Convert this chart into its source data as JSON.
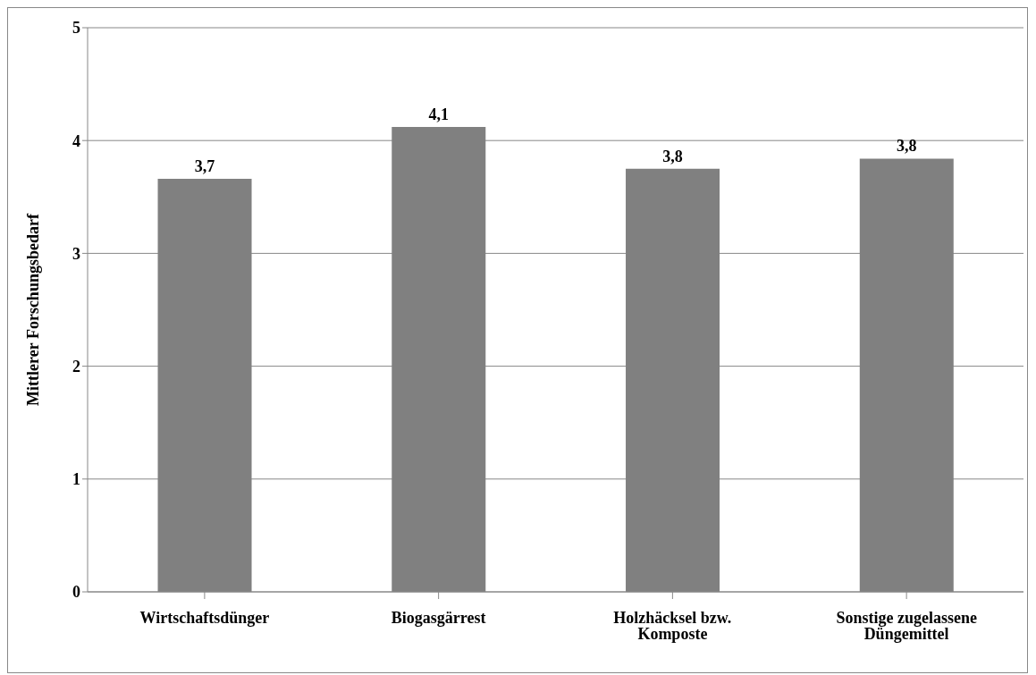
{
  "chart_data": {
    "type": "bar",
    "ylabel": "Mittlerer Forschungsbedarf",
    "categories": [
      "Wirtschaftsdünger",
      "Biogasgärrest",
      "Holzhäcksel bzw. Komposte",
      "Sonstige zugelassene Düngemittel"
    ],
    "values": [
      3.66,
      4.12,
      3.75,
      3.84
    ],
    "value_labels": [
      "3,7",
      "4,1",
      "3,8",
      "3,8"
    ],
    "color": "#808080",
    "ylim": [
      0,
      5
    ],
    "yticks": [
      0,
      1,
      2,
      3,
      4,
      5
    ],
    "grid": "y"
  }
}
